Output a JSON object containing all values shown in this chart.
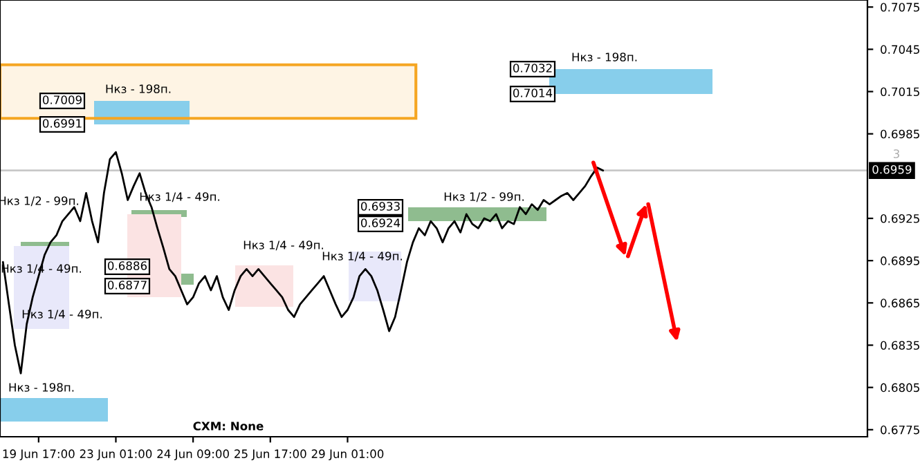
{
  "chart_data": {
    "type": "line",
    "categories": [
      null,
      null,
      null,
      null,
      null,
      null,
      "19 Jun 17:00",
      null,
      null,
      null,
      null,
      null,
      null,
      null,
      null,
      null,
      null,
      null,
      null,
      "23 Jun 01:00",
      null,
      null,
      null,
      null,
      null,
      null,
      null,
      null,
      null,
      null,
      null,
      null,
      "24 Jun 09:00",
      null,
      null,
      null,
      null,
      null,
      null,
      null,
      null,
      null,
      null,
      null,
      null,
      "25 Jun 17:00",
      null,
      null,
      null,
      null,
      null,
      null,
      null,
      null,
      null,
      null,
      null,
      null,
      "29 Jun 01:00",
      null,
      null,
      null,
      null,
      null,
      null,
      null,
      null,
      null,
      null,
      null,
      null,
      null,
      null,
      null,
      null,
      null,
      null,
      null,
      null,
      null,
      null,
      null,
      null,
      null,
      null,
      null,
      null,
      null,
      null,
      null,
      null,
      null,
      null,
      null,
      null,
      null,
      null,
      null,
      null,
      null,
      null,
      null,
      null,
      null,
      null,
      null,
      null,
      null,
      null,
      null,
      null,
      null,
      null,
      null,
      null,
      null,
      null,
      null,
      null,
      null,
      null,
      null,
      null,
      null,
      null,
      null,
      null,
      null,
      null,
      null,
      null,
      null,
      null,
      null,
      null,
      null,
      null,
      null,
      null,
      null,
      null,
      null,
      null,
      null,
      null,
      null
    ],
    "series": [
      {
        "color": "#000000",
        "values": [
          0.6894,
          0.6864,
          0.6835,
          0.6815,
          0.685,
          0.6869,
          0.6884,
          0.6899,
          0.6908,
          0.6913,
          0.6923,
          0.6928,
          0.6933,
          0.6923,
          0.6943,
          0.6923,
          0.6908,
          0.6943,
          0.6967,
          0.6972,
          0.6957,
          0.6938,
          0.6948,
          0.6957,
          0.6943,
          0.6933,
          0.6918,
          0.6904,
          0.6889,
          0.6884,
          0.6874,
          0.6864,
          0.6869,
          0.6879,
          0.6884,
          0.6874,
          0.6884,
          0.6869,
          0.686,
          0.6874,
          0.6884,
          0.6889,
          0.6884,
          0.6889,
          0.6884,
          0.6879,
          0.6874,
          0.6869,
          0.686,
          0.6855,
          0.6864,
          0.6869,
          0.6874,
          0.6879,
          0.6884,
          0.6874,
          0.6864,
          0.6855,
          0.686,
          0.6869,
          0.6884,
          0.6889,
          0.6884,
          0.6874,
          0.686,
          0.6845,
          0.6855,
          0.6874,
          0.6894,
          0.6908,
          0.6918,
          0.6913,
          0.6923,
          0.6918,
          0.6908,
          0.6918,
          0.6923,
          0.6915,
          0.6928,
          0.6921,
          0.6918,
          0.6925,
          0.6923,
          0.6928,
          0.6918,
          0.6923,
          0.6921,
          0.6933,
          0.6928,
          0.6935,
          0.6931,
          0.6938,
          0.6935,
          0.6938,
          0.6941,
          0.6943,
          0.6938,
          0.6943,
          0.6948,
          0.6955,
          0.6961,
          0.6959,
          null,
          null,
          null,
          null,
          null,
          null,
          null,
          null,
          null,
          null,
          null,
          null,
          null,
          null,
          null,
          null,
          null,
          null,
          null,
          null,
          null,
          null,
          null,
          null,
          null,
          null,
          null,
          null,
          null,
          null,
          null,
          null,
          null,
          null,
          null,
          null,
          null,
          null,
          null,
          null,
          null,
          null,
          null,
          null
        ]
      }
    ],
    "ylim": [
      0.677,
      0.708
    ],
    "yticks": [
      0.6775,
      0.6805,
      0.6835,
      0.6865,
      0.6895,
      0.6925,
      0.6985,
      0.7015,
      0.7045,
      0.7075
    ],
    "bands": [
      {
        "axis": "y",
        "from": 0.6996,
        "to": 0.7034,
        "color": "#f5a623"
      }
    ],
    "ref_lines": [
      {
        "axis": "y",
        "value": 0.6959,
        "label": "0.6959",
        "color": "#c8c8c8"
      }
    ],
    "annotations": [
      "Нкз - 198п.",
      "0.7009",
      "0.6991",
      "Нкз - 198п.",
      "0.7032",
      "0.7014",
      "Нкз 1/4 - 49п.",
      "Нкз 1/2 - 99п.",
      "Нкз 1/4 - 49п.",
      "Нкз 1/4 - 49п.",
      "0.6886",
      "0.6877",
      "Нкз 1/4 - 49п.",
      "Нкз 1/4 - 49п.",
      "0.6933",
      "0.6924",
      "Нкз 1/2 - 99п.",
      "Нкз - 198п.",
      "CXM: None",
      "3"
    ],
    "grid": false
  }
}
